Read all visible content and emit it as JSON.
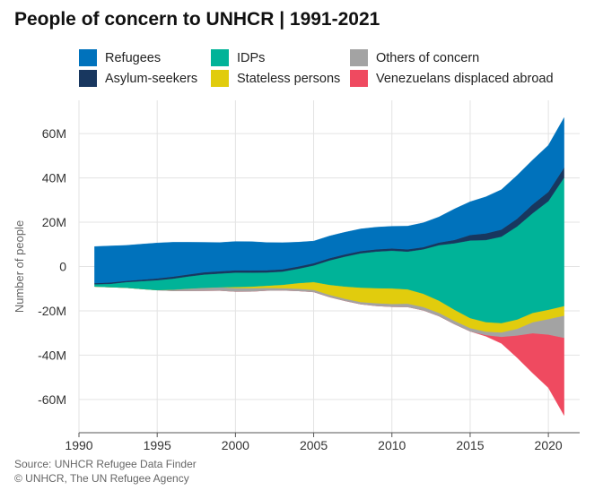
{
  "title": "People of concern to UNHCR | 1991-2021",
  "source": "Source: UNHCR Refugee Data Finder",
  "copyright": "© UNHCR, The UN Refugee Agency",
  "legend": [
    {
      "name": "Refugees",
      "color": "#0072BC"
    },
    {
      "name": "Asylum-seekers",
      "color": "#18375F"
    },
    {
      "name": "IDPs",
      "color": "#00B398"
    },
    {
      "name": "Stateless persons",
      "color": "#E1CC0D"
    },
    {
      "name": "Others of concern",
      "color": "#A3A3A3"
    },
    {
      "name": "Venezuelans displaced abroad",
      "color": "#EF4A60"
    }
  ],
  "chart_data": {
    "type": "area",
    "layout": "streamgraph",
    "ylabel": "Number of people",
    "ylim": [
      -75,
      75
    ],
    "xlim": [
      1990,
      2022
    ],
    "x_ticks": [
      1990,
      1995,
      2000,
      2005,
      2010,
      2015,
      2020
    ],
    "y_ticks": [
      -60,
      -40,
      -20,
      0,
      20,
      40,
      60
    ],
    "y_tick_labels": [
      "-60M",
      "-40M",
      "-20M",
      "0",
      "20M",
      "40M",
      "60M"
    ],
    "grid": true,
    "x": [
      1991,
      1992,
      1993,
      1994,
      1995,
      1996,
      1997,
      1998,
      1999,
      2000,
      2001,
      2002,
      2003,
      2004,
      2005,
      2006,
      2007,
      2008,
      2009,
      2010,
      2011,
      2012,
      2013,
      2014,
      2015,
      2016,
      2017,
      2018,
      2019,
      2020,
      2021
    ],
    "series": [
      {
        "name": "Venezuelans displaced abroad",
        "color": "#EF4A60",
        "values": [
          0,
          0,
          0,
          0,
          0,
          0,
          0,
          0,
          0,
          0,
          0,
          0,
          0,
          0,
          0,
          0,
          0,
          0,
          0,
          0,
          0,
          0,
          0,
          0,
          0,
          0.5,
          3,
          10,
          18,
          24,
          35
        ]
      },
      {
        "name": "Others of concern",
        "color": "#A3A3A3",
        "values": [
          0,
          0,
          0,
          0,
          0,
          0.5,
          1,
          1.3,
          1.5,
          1.6,
          1.5,
          1.2,
          1,
          1,
          1,
          1,
          1,
          1,
          1.2,
          1.3,
          1.5,
          1.5,
          1.5,
          1.5,
          1.5,
          1.6,
          2,
          3,
          5,
          7,
          10
        ]
      },
      {
        "name": "Stateless persons",
        "color": "#E1CC0D",
        "values": [
          0,
          0,
          0,
          0,
          0,
          0,
          0,
          0,
          0,
          0.5,
          0.7,
          1,
          1.5,
          2.5,
          3.5,
          4.5,
          5.5,
          6.5,
          6.8,
          7,
          6.5,
          6,
          5.5,
          5,
          4.5,
          4.3,
          4.2,
          4.2,
          4.2,
          4.2,
          4.3
        ]
      },
      {
        "name": "IDPs",
        "color": "#00B398",
        "values": [
          1,
          1.5,
          2.5,
          3.5,
          4.5,
          5,
          5.5,
          6,
          6.2,
          6.5,
          6.3,
          6,
          6,
          6.5,
          7.5,
          11,
          13.5,
          15.5,
          16.5,
          17,
          17,
          20,
          25,
          30,
          35,
          37,
          39,
          42,
          45,
          49,
          58
        ]
      },
      {
        "name": "Asylum-seekers",
        "color": "#18375F",
        "values": [
          0.5,
          0.6,
          0.6,
          0.7,
          0.8,
          0.9,
          0.9,
          1,
          1,
          1,
          1,
          1,
          1,
          1,
          1,
          1,
          1,
          1,
          1,
          1,
          1,
          1,
          1.2,
          1.5,
          2.5,
          3,
          3.2,
          3.5,
          4,
          4.2,
          4.5
        ]
      },
      {
        "name": "Refugees",
        "color": "#0072BC",
        "values": [
          16.5,
          16.5,
          16,
          16,
          16,
          15.5,
          14.5,
          13.5,
          13,
          13,
          13,
          12.5,
          12,
          11,
          10,
          10,
          10,
          10,
          10,
          10,
          10.5,
          11,
          11.5,
          14,
          15,
          16.5,
          18,
          19.5,
          20,
          21,
          22.5
        ]
      }
    ]
  }
}
